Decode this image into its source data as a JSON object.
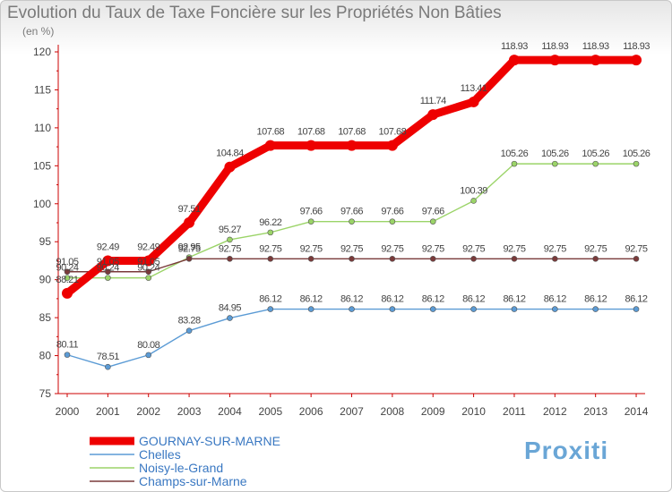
{
  "header": {
    "title": "Evolution du Taux de Taxe Foncière sur les Propriétés Non Bâties",
    "unit": "(en %)"
  },
  "logo": {
    "text": "Proxiti"
  },
  "chart_data": {
    "type": "line",
    "title": "Evolution du Taux de Taxe Foncière sur les Propriétés Non Bâties",
    "ylabel": "(en %)",
    "xlabel": "",
    "ylim": [
      75,
      120
    ],
    "yticks": [
      75,
      80,
      85,
      90,
      95,
      100,
      105,
      110,
      115,
      120
    ],
    "categories": [
      "2000",
      "2001",
      "2002",
      "2003",
      "2004",
      "2005",
      "2006",
      "2007",
      "2008",
      "2009",
      "2010",
      "2011",
      "2012",
      "2013",
      "2014"
    ],
    "legend_position": "bottom-left",
    "grid": false,
    "series": [
      {
        "name": "GOURNAY-SUR-MARNE",
        "color": "#ee0000",
        "emphasis": true,
        "values": [
          88.21,
          92.49,
          92.49,
          97.51,
          104.84,
          107.68,
          107.68,
          107.68,
          107.68,
          111.74,
          113.41,
          118.93,
          118.93,
          118.93,
          118.93
        ],
        "labels": [
          "88.21",
          "92.49",
          "92.49",
          "97.51",
          "104.84",
          "107.68",
          "107.68",
          "107.68",
          "107.68",
          "111.74",
          "113.41",
          "118.93",
          "118.93",
          "118.93",
          "118.93"
        ]
      },
      {
        "name": "Chelles",
        "color": "#5b9bd5",
        "emphasis": false,
        "values": [
          80.11,
          78.51,
          80.08,
          83.28,
          84.95,
          86.12,
          86.12,
          86.12,
          86.12,
          86.12,
          86.12,
          86.12,
          86.12,
          86.12,
          86.12
        ],
        "labels": [
          "80.11",
          "78.51",
          "80.08",
          "83.28",
          "84.95",
          "86.12",
          "86.12",
          "86.12",
          "86.12",
          "86.12",
          "86.12",
          "86.12",
          "86.12",
          "86.12",
          "86.12"
        ]
      },
      {
        "name": "Noisy-le-Grand",
        "color": "#9bd468",
        "emphasis": false,
        "values": [
          90.24,
          90.24,
          90.24,
          92.95,
          95.27,
          96.22,
          97.66,
          97.66,
          97.66,
          97.66,
          100.39,
          105.26,
          105.26,
          105.26,
          105.26
        ],
        "labels": [
          "90.24",
          "90.24",
          "90.24",
          "92.95",
          "95.27",
          "96.22",
          "97.66",
          "97.66",
          "97.66",
          "97.66",
          "100.39",
          "105.26",
          "105.26",
          "105.26",
          "105.26"
        ]
      },
      {
        "name": "Champs-sur-Marne",
        "color": "#7a3a3a",
        "emphasis": false,
        "values": [
          91.05,
          91.05,
          91.05,
          92.75,
          92.75,
          92.75,
          92.75,
          92.75,
          92.75,
          92.75,
          92.75,
          92.75,
          92.75,
          92.75,
          92.75
        ],
        "labels": [
          "91.05",
          "91.05",
          "91.05",
          "92.75",
          "92.75",
          "92.75",
          "92.75",
          "92.75",
          "92.75",
          "92.75",
          "92.75",
          "92.75",
          "92.75",
          "92.75",
          "92.75"
        ]
      }
    ]
  }
}
